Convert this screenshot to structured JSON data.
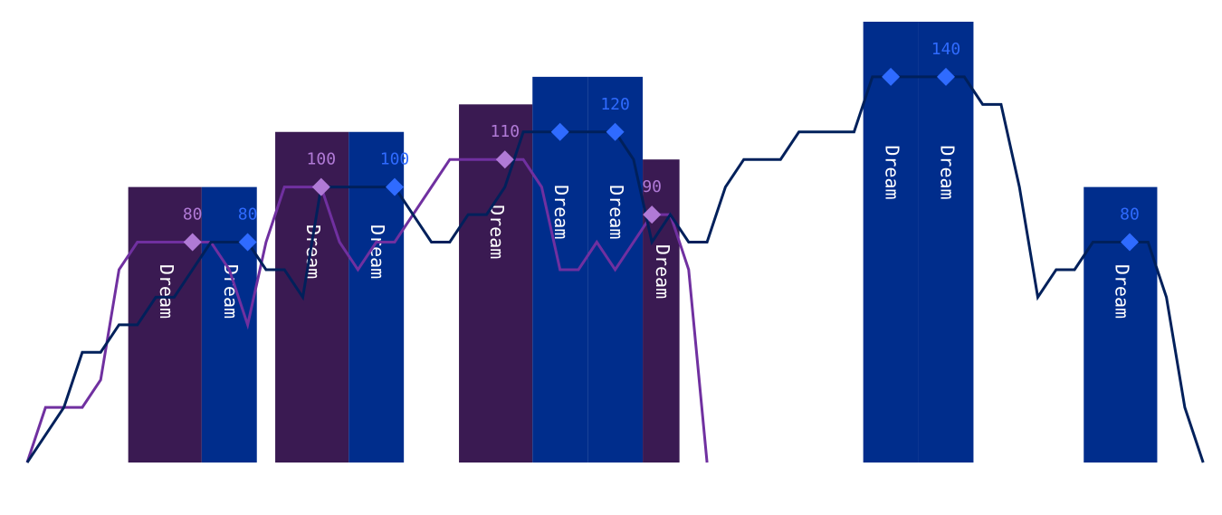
{
  "chart_data": {
    "type": "bar",
    "title": "",
    "xlabel": "",
    "ylabel": "",
    "ylim": [
      0,
      160
    ],
    "x_count": 63,
    "grid": false,
    "legend": "none",
    "colors": {
      "series_a_bar": "#3a1a52",
      "series_b_bar": "#002d8c",
      "series_a_line": "#7030a0",
      "series_b_line": "#00205b",
      "series_a_marker": "#b07ad6",
      "series_b_marker": "#2f6bff",
      "bar_text": "#ffffff"
    },
    "series": [
      {
        "bars": [
          {
            "x0": 5.5,
            "x1": 9.5,
            "value": 100,
            "label": "Dream",
            "marker_x": 9,
            "marker_value": 80,
            "marker_label": "80"
          },
          {
            "x0": 13.5,
            "x1": 17.5,
            "value": 120,
            "label": "Dream",
            "marker_x": 16,
            "marker_value": 100,
            "marker_label": "100"
          },
          {
            "x0": 23.5,
            "x1": 27.5,
            "value": 130,
            "label": "Dream",
            "marker_x": 26,
            "marker_value": 110,
            "marker_label": "110"
          },
          {
            "x0": 33.5,
            "x1": 35.5,
            "value": 110,
            "label": "Dream",
            "marker_x": 34,
            "marker_value": 90,
            "marker_label": "90"
          }
        ],
        "line": [
          0,
          20,
          20,
          20,
          30,
          70,
          80,
          80,
          80,
          80,
          80,
          70,
          50,
          80,
          100,
          100,
          100,
          80,
          70,
          80,
          80,
          90,
          100,
          110,
          110,
          110,
          110,
          110,
          100,
          70,
          70,
          80,
          70,
          80,
          90,
          90,
          70,
          0
        ]
      },
      {
        "bars": [
          {
            "x0": 9.5,
            "x1": 12.5,
            "value": 100,
            "label": "Dream",
            "marker_x": 12,
            "marker_value": 80,
            "marker_label": "80"
          },
          {
            "x0": 17.5,
            "x1": 20.5,
            "value": 120,
            "label": "Dream",
            "marker_x": 20,
            "marker_value": 100,
            "marker_label": "100"
          },
          {
            "x0": 27.5,
            "x1": 30.5,
            "value": 140,
            "label": "Dream",
            "marker_x": 29,
            "marker_value": 120,
            "marker_label": ""
          },
          {
            "x0": 30.5,
            "x1": 33.5,
            "value": 140,
            "label": "Dream",
            "marker_x": 32,
            "marker_value": 120,
            "marker_label": "120"
          },
          {
            "x0": 45.5,
            "x1": 48.5,
            "value": 160,
            "label": "Dream",
            "marker_x": 47,
            "marker_value": 140,
            "marker_label": ""
          },
          {
            "x0": 48.5,
            "x1": 51.5,
            "value": 160,
            "label": "Dream",
            "marker_x": 50,
            "marker_value": 140,
            "marker_label": "140"
          },
          {
            "x0": 57.5,
            "x1": 61.5,
            "value": 100,
            "label": "Dream",
            "marker_x": 60,
            "marker_value": 80,
            "marker_label": "80"
          }
        ],
        "line": [
          0,
          10,
          20,
          40,
          40,
          50,
          50,
          60,
          60,
          70,
          80,
          80,
          80,
          70,
          70,
          60,
          100,
          100,
          100,
          100,
          100,
          90,
          80,
          80,
          90,
          90,
          100,
          120,
          120,
          120,
          120,
          120,
          120,
          110,
          80,
          90,
          80,
          80,
          100,
          110,
          110,
          110,
          120,
          120,
          120,
          120,
          140,
          140,
          140,
          140,
          140,
          140,
          130,
          130,
          100,
          60,
          70,
          70,
          80,
          80,
          80,
          80,
          60,
          20,
          0
        ]
      }
    ]
  }
}
